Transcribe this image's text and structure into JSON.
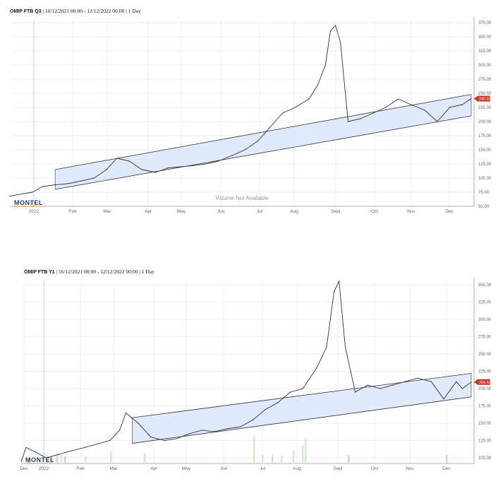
{
  "panels": [
    {
      "title_bold": "OMIP FTB Q3",
      "title_rest": " | 10/12/2021 00:00 - 12/12/2022 00:00 | 1 Day",
      "logo": "MONTEL",
      "watermark": "Volume Not Available",
      "last_value_label": "240.50",
      "last_value_color": "#c0392b",
      "line_color": "#333333",
      "channel_fill": "#dbe6fb",
      "x_labels": [
        "2022",
        "Feb",
        "Mar",
        "Apr",
        "May",
        "Jun",
        "Jul",
        "Aug",
        "Sept",
        "Oct",
        "Nov",
        "Dec"
      ],
      "y_labels": [
        "375.00",
        "350.00",
        "325.00",
        "300.00",
        "275.00",
        "250.00",
        "225.00",
        "200.00",
        "175.00",
        "150.00",
        "125.00",
        "100.00",
        "75.00",
        "50.00"
      ]
    },
    {
      "title_bold": "OMIP FTB Y1",
      "title_rest": " | 16/12/2021 00:00 - 12/12/2022 00:00 | 1 Day",
      "logo": "MONTEL",
      "last_value_label": "209.42",
      "last_value_color": "#c0392b",
      "line_color": "#333333",
      "channel_fill": "#dbe6fb",
      "x_labels": [
        "Dec",
        "2022",
        "Feb",
        "Mar",
        "Apr",
        "May",
        "Jun",
        "Jul",
        "Aug",
        "Sept",
        "Oct",
        "Nov",
        "Dec"
      ],
      "y_labels": [
        "350.00",
        "325.00",
        "300.00",
        "275.00",
        "250.00",
        "225.00",
        "200.00",
        "175.00",
        "150.00",
        "125.00",
        "100.00"
      ]
    }
  ],
  "chart_data": [
    {
      "type": "line",
      "title": "OMIP FTB Q3 | 10/12/2021 00:00 - 12/12/2022 00:00 | 1 Day",
      "ylim": [
        50,
        380
      ],
      "last_value": 240.5,
      "x": [
        "2021-12-10",
        "2021-12-20",
        "2021-12-28",
        "2022-01-05",
        "2022-01-15",
        "2022-01-25",
        "2022-02-05",
        "2022-02-15",
        "2022-02-25",
        "2022-03-05",
        "2022-03-15",
        "2022-03-25",
        "2022-04-05",
        "2022-04-15",
        "2022-04-25",
        "2022-05-05",
        "2022-05-15",
        "2022-05-25",
        "2022-06-05",
        "2022-06-15",
        "2022-06-25",
        "2022-07-05",
        "2022-07-15",
        "2022-07-25",
        "2022-08-05",
        "2022-08-12",
        "2022-08-18",
        "2022-08-22",
        "2022-08-26",
        "2022-08-30",
        "2022-09-05",
        "2022-09-15",
        "2022-09-25",
        "2022-10-05",
        "2022-10-15",
        "2022-10-25",
        "2022-11-05",
        "2022-11-15",
        "2022-11-25",
        "2022-12-05",
        "2022-12-12"
      ],
      "series": [
        {
          "values": [
            68,
            72,
            75,
            85,
            88,
            90,
            95,
            100,
            115,
            135,
            130,
            115,
            110,
            118,
            120,
            122,
            125,
            130,
            140,
            150,
            165,
            190,
            215,
            225,
            240,
            265,
            300,
            360,
            370,
            340,
            200,
            205,
            215,
            225,
            240,
            230,
            220,
            200,
            225,
            230,
            240.5
          ]
        }
      ],
      "annotations": {
        "channel": {
          "upper": [
            [
              "2022-01-15",
              115
            ],
            [
              "2022-12-12",
              248
            ]
          ],
          "lower": [
            [
              "2022-01-15",
              80
            ],
            [
              "2022-12-12",
              210
            ]
          ]
        }
      }
    },
    {
      "type": "line",
      "title": "OMIP FTB Y1 | 16/12/2021 00:00 - 12/12/2022 00:00 | 1 Day",
      "ylim": [
        92,
        355
      ],
      "last_value": 209.42,
      "x": [
        "2021-12-16",
        "2021-12-20",
        "2021-12-28",
        "2022-01-05",
        "2022-01-15",
        "2022-01-25",
        "2022-02-05",
        "2022-02-15",
        "2022-02-25",
        "2022-03-05",
        "2022-03-10",
        "2022-03-20",
        "2022-03-30",
        "2022-04-10",
        "2022-04-20",
        "2022-04-30",
        "2022-05-10",
        "2022-05-20",
        "2022-05-30",
        "2022-06-10",
        "2022-06-20",
        "2022-06-30",
        "2022-07-10",
        "2022-07-20",
        "2022-07-30",
        "2022-08-10",
        "2022-08-18",
        "2022-08-24",
        "2022-08-28",
        "2022-09-02",
        "2022-09-10",
        "2022-09-20",
        "2022-09-30",
        "2022-10-10",
        "2022-10-20",
        "2022-10-30",
        "2022-11-10",
        "2022-11-20",
        "2022-11-30",
        "2022-12-05",
        "2022-12-12"
      ],
      "series": [
        {
          "values": [
            95,
            115,
            108,
            100,
            105,
            110,
            115,
            120,
            125,
            140,
            165,
            150,
            130,
            125,
            128,
            135,
            140,
            138,
            142,
            145,
            155,
            170,
            180,
            195,
            200,
            230,
            260,
            340,
            355,
            260,
            195,
            205,
            200,
            205,
            210,
            215,
            210,
            185,
            210,
            200,
            209.42
          ]
        }
      ],
      "annotations": {
        "channel": {
          "upper": [
            [
              "2022-03-15",
              158
            ],
            [
              "2022-12-12",
              222
            ]
          ],
          "lower": [
            [
              "2022-03-15",
              121
            ],
            [
              "2022-12-12",
              188
            ]
          ]
        }
      }
    }
  ]
}
